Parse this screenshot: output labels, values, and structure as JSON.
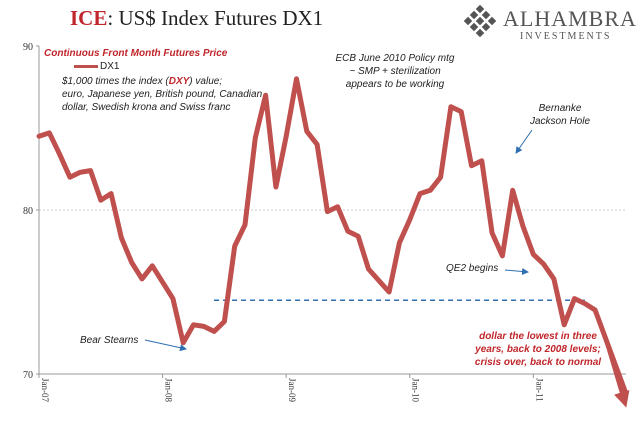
{
  "title": {
    "prefix": "ICE",
    "rest": ": US$ Index Futures DX1"
  },
  "logo": {
    "word": "ALHAMBRA",
    "sub": "INVESTMENTS",
    "icon": "diamond-lattice-icon"
  },
  "subtitle": "Continuous Front Month Futures Price",
  "legend": {
    "name": "DX1"
  },
  "description": {
    "part1": "$1,000 times the index (",
    "dxy": "DXY",
    "part2": ") value;",
    "line2": "euro, Japanese yen, British pound, Canadian",
    "line3": "dollar, Swedish krona and Swiss franc"
  },
  "annotations": {
    "ecb1": "ECB June 2010 Policy mtg",
    "ecb2": "~ SMP + sterilization",
    "ecb3": "appears to be working",
    "bernanke1": "Bernanke",
    "bernanke2": "Jackson Hole",
    "qe2": "QE2 begins",
    "bear": "Bear Stearns",
    "lowest1": "dollar the lowest in three",
    "lowest2": "years, back to 2008 levels;",
    "lowest3": "crisis over, back to normal"
  },
  "colors": {
    "series": "#c0504d",
    "title_accent": "#c0262b",
    "reference_line": "#2e6fb0",
    "grid": "#cccccc"
  },
  "chart_data": {
    "type": "line",
    "y_ticks": [
      "70",
      "80",
      "90"
    ],
    "ylim": [
      70,
      90
    ],
    "x_ticks": [
      "Jan-07",
      "Jan-08",
      "Jan-09",
      "Jan-10",
      "Jan-11"
    ],
    "xlim": [
      "2007-01",
      "2011-10"
    ],
    "grid": "horizontal dotted at 80",
    "legend_position": "top-left",
    "reference_line": {
      "y": 74.5,
      "from": "2008-06",
      "to": "2011-06",
      "style": "dashed"
    },
    "series": [
      {
        "name": "DX1",
        "points": [
          [
            "2007-01",
            84.5
          ],
          [
            "2007-02",
            84.7
          ],
          [
            "2007-03",
            83.4
          ],
          [
            "2007-04",
            82.0
          ],
          [
            "2007-05",
            82.3
          ],
          [
            "2007-06",
            82.4
          ],
          [
            "2007-07",
            80.6
          ],
          [
            "2007-08",
            81.0
          ],
          [
            "2007-09",
            78.3
          ],
          [
            "2007-10",
            76.8
          ],
          [
            "2007-11",
            75.8
          ],
          [
            "2007-12",
            76.6
          ],
          [
            "2008-01",
            75.6
          ],
          [
            "2008-02",
            74.6
          ],
          [
            "2008-03",
            71.9
          ],
          [
            "2008-04",
            73.0
          ],
          [
            "2008-05",
            72.9
          ],
          [
            "2008-06",
            72.6
          ],
          [
            "2008-07",
            73.2
          ],
          [
            "2008-08",
            77.8
          ],
          [
            "2008-09",
            79.1
          ],
          [
            "2008-10",
            84.4
          ],
          [
            "2008-11",
            87.0
          ],
          [
            "2008-12",
            81.4
          ],
          [
            "2009-01",
            84.5
          ],
          [
            "2009-02",
            88.0
          ],
          [
            "2009-03",
            84.8
          ],
          [
            "2009-04",
            84.0
          ],
          [
            "2009-05",
            79.9
          ],
          [
            "2009-06",
            80.2
          ],
          [
            "2009-07",
            78.7
          ],
          [
            "2009-08",
            78.4
          ],
          [
            "2009-09",
            76.4
          ],
          [
            "2009-10",
            75.7
          ],
          [
            "2009-11",
            75.0
          ],
          [
            "2009-12",
            78.0
          ],
          [
            "2010-01",
            79.4
          ],
          [
            "2010-02",
            81.0
          ],
          [
            "2010-03",
            81.2
          ],
          [
            "2010-04",
            82.0
          ],
          [
            "2010-05",
            86.3
          ],
          [
            "2010-06",
            86.0
          ],
          [
            "2010-07",
            82.7
          ],
          [
            "2010-08",
            83.0
          ],
          [
            "2010-09",
            78.6
          ],
          [
            "2010-10",
            77.2
          ],
          [
            "2010-11",
            81.2
          ],
          [
            "2010-12",
            79.0
          ],
          [
            "2011-01",
            77.3
          ],
          [
            "2011-02",
            76.7
          ],
          [
            "2011-03",
            75.8
          ],
          [
            "2011-04",
            73.0
          ],
          [
            "2011-05",
            74.6
          ],
          [
            "2011-06",
            74.3
          ],
          [
            "2011-07",
            73.9
          ],
          [
            "2011-08",
            72.2
          ],
          [
            "2011-09",
            70.5
          ],
          [
            "2011-10",
            68.8
          ]
        ]
      }
    ]
  }
}
